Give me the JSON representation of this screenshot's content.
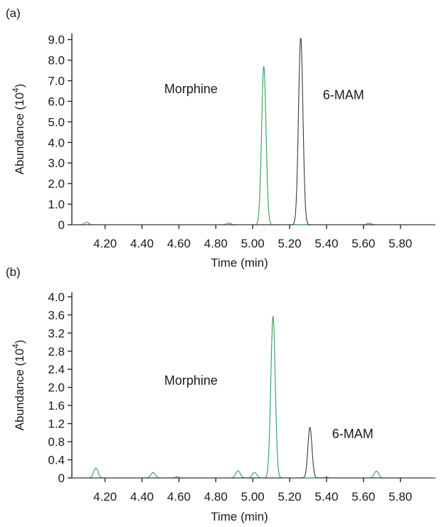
{
  "chart_data": [
    {
      "type": "line",
      "panel_label": "(a)",
      "xlabel": "Time (min)",
      "ylabel": "Abundance (10",
      "ylabel_sup": "4",
      "ylabel_close": ")",
      "xlim": [
        4.02,
        5.99
      ],
      "ylim": [
        0,
        9.3
      ],
      "x_ticks": [
        4.2,
        4.4,
        4.6,
        4.8,
        5.0,
        5.2,
        5.4,
        5.6,
        5.8
      ],
      "x_tick_labels": [
        "4.20",
        "4.40",
        "4.60",
        "4.80",
        "5.00",
        "5.20",
        "5.40",
        "5.60",
        "5.80"
      ],
      "y_ticks": [
        0,
        1,
        2,
        3,
        4,
        5,
        6,
        7,
        8,
        9
      ],
      "y_tick_labels": [
        "0",
        "1.0",
        "2.0",
        "3.0",
        "4.0",
        "5.0",
        "6.0",
        "7.0",
        "8.0",
        "9.0"
      ],
      "series": [
        {
          "color": "#2ca05a",
          "peaks": [
            {
              "x": 4.1,
              "height": 0.12,
              "width": 0.012
            },
            {
              "x": 4.87,
              "height": 0.08,
              "width": 0.012
            },
            {
              "x": 5.06,
              "height": 7.7,
              "width": 0.012
            },
            {
              "x": 5.63,
              "height": 0.07,
              "width": 0.012
            }
          ]
        },
        {
          "color": "#3a3a3a",
          "peaks": [
            {
              "x": 5.26,
              "height": 9.1,
              "width": 0.012
            }
          ]
        }
      ],
      "annotations": [
        {
          "text": "Morphine",
          "x": 4.81,
          "y": 6.4
        },
        {
          "text": "6-MAM",
          "x": 5.38,
          "y": 6.1
        }
      ]
    },
    {
      "type": "line",
      "panel_label": "(b)",
      "xlabel": "Time (min)",
      "ylabel": "Abundance (10",
      "ylabel_sup": "4",
      "ylabel_close": ")",
      "xlim": [
        4.02,
        5.99
      ],
      "ylim": [
        0,
        4.1
      ],
      "x_ticks": [
        4.2,
        4.4,
        4.6,
        4.8,
        5.0,
        5.2,
        5.4,
        5.6,
        5.8
      ],
      "x_tick_labels": [
        "4.20",
        "4.40",
        "4.60",
        "4.80",
        "5.00",
        "5.20",
        "5.40",
        "5.60",
        "5.80"
      ],
      "y_ticks": [
        0,
        0.4,
        0.8,
        1.2,
        1.6,
        2.0,
        2.4,
        2.8,
        3.2,
        3.6,
        4.0
      ],
      "y_tick_labels": [
        "0",
        "0.4",
        "0.8",
        "1.2",
        "1.6",
        "2.0",
        "2.4",
        "2.8",
        "3.2",
        "3.6",
        "4.0"
      ],
      "series": [
        {
          "color": "#2ca05a",
          "peaks": [
            {
              "x": 4.15,
              "height": 0.22,
              "width": 0.012
            },
            {
              "x": 4.46,
              "height": 0.12,
              "width": 0.012
            },
            {
              "x": 4.59,
              "height": 0.03,
              "width": 0.008
            },
            {
              "x": 4.92,
              "height": 0.16,
              "width": 0.012
            },
            {
              "x": 5.01,
              "height": 0.12,
              "width": 0.012
            },
            {
              "x": 5.11,
              "height": 3.57,
              "width": 0.012
            },
            {
              "x": 5.67,
              "height": 0.15,
              "width": 0.012
            }
          ]
        },
        {
          "color": "#3a3a3a",
          "peaks": [
            {
              "x": 5.31,
              "height": 1.12,
              "width": 0.011
            },
            {
              "x": 5.4,
              "height": 0.02,
              "width": 0.006
            }
          ]
        }
      ],
      "annotations": [
        {
          "text": "Morphine",
          "x": 4.81,
          "y": 2.06
        },
        {
          "text": "6-MAM",
          "x": 5.43,
          "y": 0.88
        }
      ]
    }
  ]
}
